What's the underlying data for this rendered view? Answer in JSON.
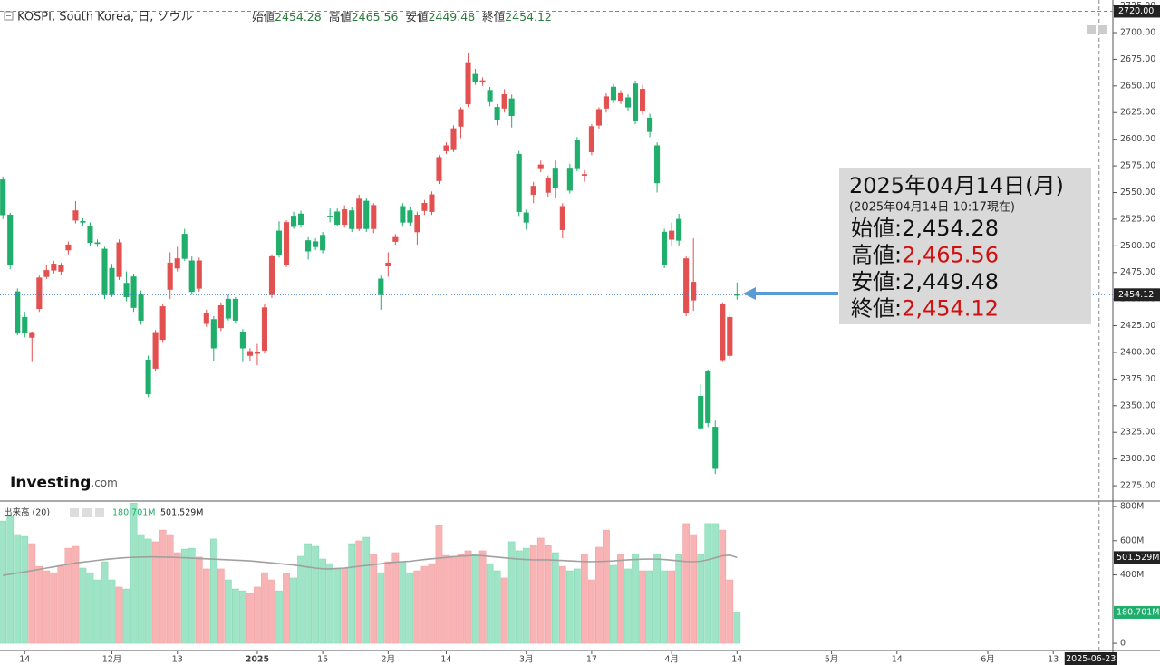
{
  "header": {
    "title": "KOSPI, South Korea, 日, ソウル",
    "ohlc": [
      {
        "label": "始値",
        "value": "2454.28"
      },
      {
        "label": "高値",
        "value": "2465.56"
      },
      {
        "label": "安値",
        "value": "2449.48"
      },
      {
        "label": "終値",
        "value": "2454.12"
      }
    ]
  },
  "logo": {
    "brand": "Investing",
    "suffix": ".com"
  },
  "tooltip": {
    "date": "2025年04月14日(月)",
    "asof": "(2025年04月14日 10:17現在)",
    "separator": ":",
    "rows": [
      {
        "label": "始値",
        "value": "2,454.28",
        "color": "#111111"
      },
      {
        "label": "高値",
        "value": "2,465.56",
        "color": "#d01010"
      },
      {
        "label": "安値",
        "value": "2,449.48",
        "color": "#111111"
      },
      {
        "label": "終値",
        "value": "2,454.12",
        "color": "#d01010"
      }
    ]
  },
  "chart_data": [
    {
      "type": "candlestick",
      "up_color": "#e35050",
      "down_color": "#1fae6b",
      "grid": false,
      "xlim": [
        -0.4,
        152.7
      ],
      "xticks": [
        {
          "value": 3,
          "label": "14"
        },
        {
          "value": 15,
          "label": "12月"
        },
        {
          "value": 24,
          "label": "13"
        },
        {
          "value": 35,
          "label": "2025"
        },
        {
          "value": 44,
          "label": "15"
        },
        {
          "value": 53,
          "label": "2月"
        },
        {
          "value": 61,
          "label": "14"
        },
        {
          "value": 72,
          "label": "3月"
        },
        {
          "value": 81,
          "label": "17"
        },
        {
          "value": 92,
          "label": "4月"
        },
        {
          "value": 101,
          "label": "14"
        },
        {
          "value": 114,
          "label": "5月"
        },
        {
          "value": 123,
          "label": "14"
        },
        {
          "value": 135.5,
          "label": "6月"
        },
        {
          "value": 144.5,
          "label": "13"
        }
      ],
      "ylim": [
        2260.6,
        2730.6
      ],
      "yticks": [
        {
          "value": 2275,
          "label": "2275.00"
        },
        {
          "value": 2300,
          "label": "2300.00"
        },
        {
          "value": 2325,
          "label": "2325.00"
        },
        {
          "value": 2350,
          "label": "2350.00"
        },
        {
          "value": 2375,
          "label": "2375.00"
        },
        {
          "value": 2400,
          "label": "2400.00"
        },
        {
          "value": 2425,
          "label": "2425.00"
        },
        {
          "value": 2450,
          "label": "2450.00"
        },
        {
          "value": 2475,
          "label": "2475.00"
        },
        {
          "value": 2500,
          "label": "2500.00"
        },
        {
          "value": 2525,
          "label": "2525.00"
        },
        {
          "value": 2550,
          "label": "2550.00"
        },
        {
          "value": 2575,
          "label": "2575.00"
        },
        {
          "value": 2600,
          "label": "2600.00"
        },
        {
          "value": 2625,
          "label": "2625.00"
        },
        {
          "value": 2650,
          "label": "2650.00"
        },
        {
          "value": 2675,
          "label": "2675.00"
        },
        {
          "value": 2700,
          "label": "2700.00"
        },
        {
          "value": 2725,
          "label": "2725.00"
        }
      ],
      "last_price_tag": {
        "value": 2454.12,
        "label": "2454.12"
      },
      "crosshair": {
        "x": {
          "value": 150.8,
          "label": "2025-06-23"
        },
        "y": {
          "value": 2720,
          "label": "2720.00"
        }
      },
      "open": [
        2562,
        2529,
        2457,
        2433,
        2414,
        2441,
        2471,
        2477,
        2476,
        2496,
        2524,
        2523,
        2518,
        2503,
        2497,
        2479,
        2471,
        2465,
        2471,
        2454,
        2393,
        2385,
        2412,
        2459,
        2479,
        2511,
        2486,
        2460,
        2427,
        2431,
        2423,
        2450,
        2450,
        2419,
        2397,
        2399,
        2402,
        2454,
        2514,
        2482,
        2528,
        2530,
        2505,
        2504,
        2510,
        2528,
        2532,
        2520,
        2533,
        2516,
        2542,
        2516,
        2469,
        2481,
        2504,
        2537,
        2533,
        2513,
        2533,
        2532,
        2561,
        2589,
        2590,
        2612,
        2633,
        2661,
        2654,
        2646,
        2630,
        2629,
        2638,
        2586,
        2531,
        2548,
        2573,
        2550,
        2573,
        2515,
        2573,
        2599,
        2566,
        2588,
        2613,
        2629,
        2649,
        2636,
        2639,
        2652,
        2627,
        2620,
        2594,
        2513,
        2506,
        2525,
        2437,
        2449,
        2359,
        2382,
        2330,
        2393,
        2397,
        2454.28
      ],
      "high": [
        2565,
        2531,
        2460,
        2438,
        2419,
        2472,
        2482,
        2486,
        2484,
        2504,
        2542,
        2526,
        2522,
        2506,
        2499,
        2483,
        2506,
        2476,
        2474,
        2458,
        2397,
        2421,
        2446,
        2494,
        2499,
        2516,
        2490,
        2489,
        2440,
        2434,
        2447,
        2454,
        2452,
        2422,
        2404,
        2408,
        2446,
        2492,
        2523,
        2524,
        2532,
        2533,
        2508,
        2507,
        2513,
        2535,
        2535,
        2538,
        2536,
        2548,
        2545,
        2540,
        2472,
        2494,
        2511,
        2540,
        2536,
        2532,
        2543,
        2551,
        2585,
        2597,
        2613,
        2630,
        2681,
        2666,
        2658,
        2649,
        2633,
        2647,
        2642,
        2589,
        2534,
        2560,
        2580,
        2566,
        2580,
        2540,
        2577,
        2602,
        2571,
        2614,
        2630,
        2643,
        2652,
        2646,
        2642,
        2655,
        2651,
        2624,
        2597,
        2516,
        2522,
        2530,
        2490,
        2507,
        2370,
        2384,
        2336,
        2447,
        2436,
        2465.56
      ],
      "low": [
        2525,
        2478,
        2416,
        2414,
        2391,
        2438,
        2469,
        2474,
        2473,
        2492,
        2521,
        2519,
        2500,
        2499,
        2450,
        2452,
        2468,
        2448,
        2438,
        2426,
        2358,
        2382,
        2409,
        2450,
        2476,
        2486,
        2454,
        2457,
        2424,
        2392,
        2420,
        2430,
        2427,
        2391,
        2392,
        2388,
        2399,
        2451,
        2489,
        2480,
        2516,
        2517,
        2487,
        2496,
        2493,
        2522,
        2518,
        2517,
        2513,
        2514,
        2513,
        2512,
        2440,
        2471,
        2501,
        2518,
        2519,
        2501,
        2529,
        2529,
        2558,
        2586,
        2588,
        2601,
        2630,
        2651,
        2650,
        2631,
        2613,
        2625,
        2611,
        2528,
        2515,
        2540,
        2569,
        2546,
        2545,
        2507,
        2549,
        2570,
        2560,
        2585,
        2610,
        2625,
        2634,
        2633,
        2627,
        2614,
        2623,
        2602,
        2550,
        2479,
        2500,
        2500,
        2434,
        2439,
        2327,
        2330,
        2286,
        2391,
        2394,
        2449.48
      ],
      "close": [
        2529,
        2482,
        2418,
        2418,
        2418,
        2470,
        2477,
        2483,
        2482,
        2501,
        2533,
        2522,
        2503,
        2502,
        2454,
        2454,
        2503,
        2452,
        2442,
        2430,
        2361,
        2418,
        2443,
        2484,
        2488,
        2488,
        2457,
        2486,
        2437,
        2404,
        2444,
        2432,
        2430,
        2404,
        2401,
        2400,
        2442,
        2490,
        2492,
        2522,
        2518,
        2520,
        2495,
        2499,
        2496,
        2527,
        2520,
        2534,
        2516,
        2544,
        2516,
        2538,
        2454,
        2484,
        2508,
        2522,
        2522,
        2529,
        2540,
        2548,
        2583,
        2594,
        2610,
        2628,
        2672,
        2654,
        2655,
        2635,
        2618,
        2642,
        2622,
        2532,
        2522,
        2556,
        2576,
        2563,
        2554,
        2537,
        2552,
        2573,
        2567,
        2612,
        2628,
        2640,
        2637,
        2643,
        2630,
        2617,
        2647,
        2607,
        2559,
        2482,
        2514,
        2505,
        2488,
        2466,
        2329,
        2334,
        2291,
        2445,
        2433,
        2454.12
      ]
    },
    {
      "type": "volume",
      "name": "出来高 (20)",
      "up_color": "#f8b4b4",
      "down_color": "#9fe4c6",
      "ma_color": "#a0a0a0",
      "ylim": [
        -42,
        832
      ],
      "yticks": [
        {
          "value": 800,
          "label": "800M"
        },
        {
          "value": 600,
          "label": "600M"
        },
        {
          "value": 400,
          "label": "400M"
        },
        0
      ],
      "values": [
        715,
        742,
        636,
        625,
        583,
        450,
        424,
        413,
        450,
        556,
        567,
        440,
        413,
        371,
        477,
        371,
        329,
        318,
        820,
        636,
        610,
        594,
        662,
        636,
        530,
        551,
        556,
        504,
        435,
        610,
        435,
        371,
        318,
        307,
        292,
        329,
        413,
        371,
        307,
        408,
        382,
        509,
        583,
        567,
        493,
        466,
        435,
        440,
        583,
        599,
        620,
        519,
        413,
        477,
        530,
        477,
        413,
        424,
        450,
        466,
        689,
        514,
        509,
        519,
        541,
        519,
        541,
        466,
        424,
        382,
        594,
        541,
        556,
        572,
        615,
        572,
        530,
        450,
        424,
        435,
        519,
        371,
        562,
        662,
        456,
        519,
        435,
        519,
        424,
        424,
        519,
        424,
        424,
        519,
        700,
        636,
        519,
        700,
        700,
        662,
        371,
        180.701
      ],
      "ma_values": [
        397,
        404,
        411,
        418,
        425,
        432,
        440,
        447,
        455,
        462,
        470,
        475,
        480,
        485,
        490,
        494,
        498,
        501,
        503,
        504,
        505,
        505,
        504,
        503,
        502,
        500,
        498,
        496,
        494,
        492,
        490,
        488,
        486,
        484,
        482,
        478,
        474,
        470,
        466,
        462,
        458,
        452,
        446,
        440,
        436,
        435,
        438,
        440,
        445,
        450,
        455,
        460,
        465,
        470,
        475,
        477,
        480,
        485,
        490,
        494,
        498,
        502,
        506,
        510,
        512,
        514,
        512,
        508,
        504,
        500,
        496,
        492,
        490,
        488,
        488,
        488,
        486,
        484,
        482,
        480,
        478,
        477,
        478,
        480,
        482,
        485,
        488,
        490,
        492,
        493,
        492,
        490,
        486,
        482,
        478,
        477,
        480,
        488,
        500,
        512,
        515,
        501.529
      ],
      "last_value_label": "180.701M",
      "last_ma_label": "501.529M"
    }
  ]
}
